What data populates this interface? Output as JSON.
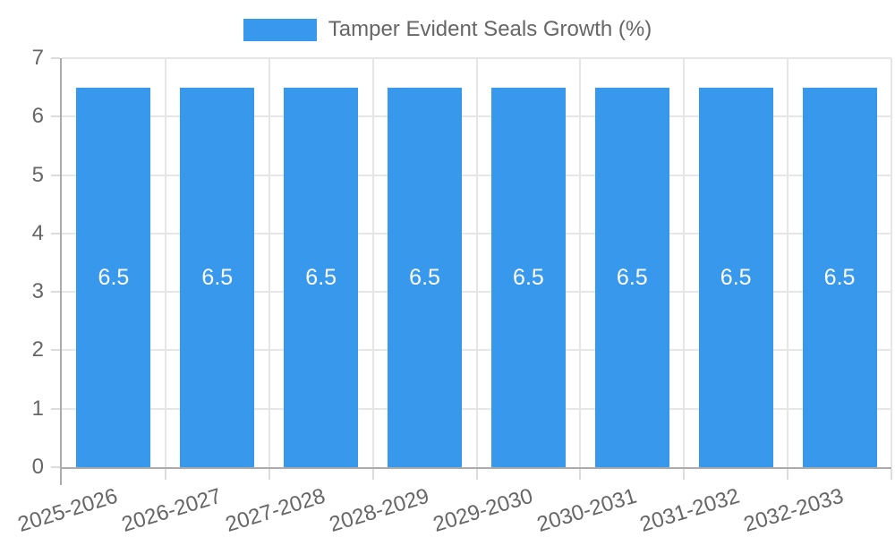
{
  "page": {
    "background": "#ffffff"
  },
  "chart_data": {
    "type": "bar",
    "title": "Tamper Evident Seals Growth (%)",
    "categories": [
      "2025-2026",
      "2026-2027",
      "2027-2028",
      "2028-2029",
      "2029-2030",
      "2030-2031",
      "2031-2032",
      "2032-2033"
    ],
    "series": [
      {
        "name": "Tamper Evident Seals Growth (%)",
        "values": [
          6.5,
          6.5,
          6.5,
          6.5,
          6.5,
          6.5,
          6.5,
          6.5
        ],
        "value_labels": [
          "6.5",
          "6.5",
          "6.5",
          "6.5",
          "6.5",
          "6.5",
          "6.5",
          "6.5"
        ]
      }
    ],
    "xlabel": "",
    "ylabel": "",
    "ylim": [
      0,
      7
    ],
    "yticks": [
      "0",
      "1",
      "2",
      "3",
      "4",
      "5",
      "6",
      "7"
    ],
    "grid": true,
    "legend_position": "top",
    "x_tick_rotation_deg": -17,
    "colors": {
      "bar": "#3899ec",
      "grid": "#e6e6e6",
      "axis": "#ababab",
      "tick": "#dcdcdc",
      "text": "#666666",
      "bar_label": "#ffffff"
    }
  }
}
